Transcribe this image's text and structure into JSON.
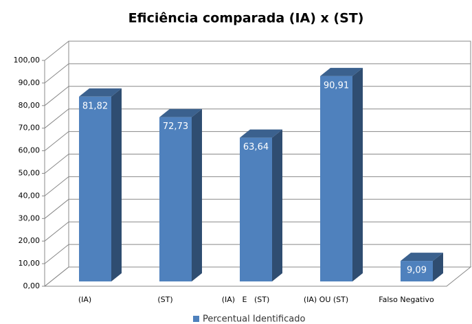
{
  "chart_data": {
    "type": "bar",
    "title": "Eficiência comparada (IA) x (ST)",
    "categories": [
      "(IA)",
      "(ST)",
      "(IA)   E   (ST)",
      "(IA) OU (ST)",
      "Falso Negativo"
    ],
    "series": [
      {
        "name": "Percentual Identificado",
        "color": "#4f81bd",
        "values": [
          81.82,
          72.73,
          63.64,
          90.91,
          9.09
        ],
        "value_labels": [
          "81,82",
          "72,73",
          "63,64",
          "90,91",
          "9,09"
        ]
      }
    ],
    "ylim": [
      0,
      100
    ],
    "yticks": [
      {
        "value": 0,
        "label": "0,00"
      },
      {
        "value": 10,
        "label": "10,00"
      },
      {
        "value": 20,
        "label": "20,00"
      },
      {
        "value": 30,
        "label": "30,00"
      },
      {
        "value": 40,
        "label": "40,00"
      },
      {
        "value": 50,
        "label": "50,00"
      },
      {
        "value": 60,
        "label": "60,00"
      },
      {
        "value": 70,
        "label": "70,00"
      },
      {
        "value": 80,
        "label": "80,00"
      },
      {
        "value": 90,
        "label": "90,00"
      },
      {
        "value": 100,
        "label": "100,00"
      }
    ],
    "grid": true,
    "legend": "bottom"
  }
}
